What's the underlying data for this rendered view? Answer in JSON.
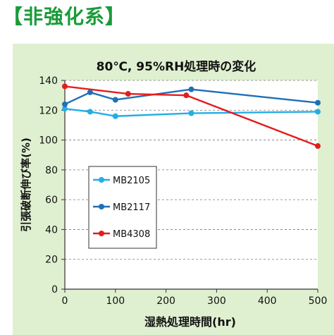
{
  "heading": "【非強化系】",
  "chart_data": {
    "type": "line",
    "title": "80℃, 95%RH処理時の変化",
    "xlabel": "湿熱処理時間(hr)",
    "ylabel": "引張破断伸び率(%)",
    "xlim": [
      0,
      500
    ],
    "ylim": [
      0,
      140
    ],
    "xticks": [
      0,
      100,
      200,
      300,
      400,
      500
    ],
    "yticks": [
      0,
      20,
      40,
      60,
      80,
      100,
      120,
      140
    ],
    "grid": true,
    "legend_position": "center-left",
    "series": [
      {
        "name": "MB2105",
        "color": "#22aee6",
        "x": [
          0,
          50,
          100,
          250,
          500
        ],
        "y": [
          121,
          119,
          116,
          118,
          119
        ]
      },
      {
        "name": "MB2117",
        "color": "#1f6fb8",
        "x": [
          0,
          50,
          100,
          250,
          500
        ],
        "y": [
          124,
          132,
          127,
          134,
          125
        ]
      },
      {
        "name": "MB4308",
        "color": "#e31d1d",
        "x": [
          0,
          125,
          240,
          500
        ],
        "y": [
          136,
          131,
          130,
          96
        ]
      }
    ]
  }
}
